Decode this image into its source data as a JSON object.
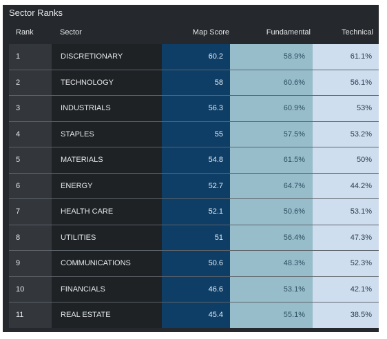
{
  "title": "Sector Ranks",
  "headers": {
    "rank": "Rank",
    "sector": "Sector",
    "map_score": "Map Score",
    "fundamental": "Fundamental",
    "technical": "Technical"
  },
  "colors": {
    "map_score_bg": "#0e3e66",
    "fundamental_bg": "#97bdcb",
    "technical_bg": "#cfdeee",
    "panel_bg": "#25282c"
  },
  "rows": [
    {
      "rank": "1",
      "sector": "DISCRETIONARY",
      "map_score": "60.2",
      "fundamental": "58.9%",
      "technical": "61.1%"
    },
    {
      "rank": "2",
      "sector": "TECHNOLOGY",
      "map_score": "58",
      "fundamental": "60.6%",
      "technical": "56.1%"
    },
    {
      "rank": "3",
      "sector": "INDUSTRIALS",
      "map_score": "56.3",
      "fundamental": "60.9%",
      "technical": "53%"
    },
    {
      "rank": "4",
      "sector": "STAPLES",
      "map_score": "55",
      "fundamental": "57.5%",
      "technical": "53.2%"
    },
    {
      "rank": "5",
      "sector": "MATERIALS",
      "map_score": "54.8",
      "fundamental": "61.5%",
      "technical": "50%"
    },
    {
      "rank": "6",
      "sector": "ENERGY",
      "map_score": "52.7",
      "fundamental": "64.7%",
      "technical": "44.2%"
    },
    {
      "rank": "7",
      "sector": "HEALTH CARE",
      "map_score": "52.1",
      "fundamental": "50.6%",
      "technical": "53.1%"
    },
    {
      "rank": "8",
      "sector": "UTILITIES",
      "map_score": "51",
      "fundamental": "56.4%",
      "technical": "47.3%"
    },
    {
      "rank": "9",
      "sector": "COMMUNICATIONS",
      "map_score": "50.6",
      "fundamental": "48.3%",
      "technical": "52.3%"
    },
    {
      "rank": "10",
      "sector": "FINANCIALS",
      "map_score": "46.6",
      "fundamental": "53.1%",
      "technical": "42.1%"
    },
    {
      "rank": "11",
      "sector": "REAL ESTATE",
      "map_score": "45.4",
      "fundamental": "55.1%",
      "technical": "38.5%"
    }
  ]
}
